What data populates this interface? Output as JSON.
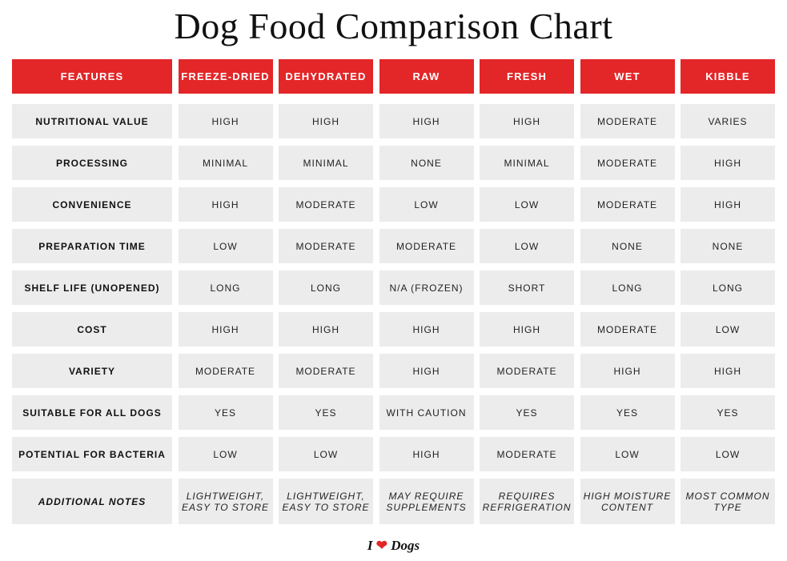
{
  "title": "Dog Food Comparison Chart",
  "accent_color": "#e32628",
  "headers": [
    "FEATURES",
    "FREEZE-DRIED",
    "DEHYDRATED",
    "RAW",
    "FRESH",
    "WET",
    "KIBBLE"
  ],
  "rows": [
    {
      "feature": "NUTRITIONAL VALUE",
      "values": [
        "HIGH",
        "HIGH",
        "HIGH",
        "HIGH",
        "MODERATE",
        "VARIES"
      ]
    },
    {
      "feature": "PROCESSING",
      "values": [
        "MINIMAL",
        "MINIMAL",
        "NONE",
        "MINIMAL",
        "MODERATE",
        "HIGH"
      ]
    },
    {
      "feature": "CONVENIENCE",
      "values": [
        "HIGH",
        "MODERATE",
        "LOW",
        "LOW",
        "MODERATE",
        "HIGH"
      ]
    },
    {
      "feature": "PREPARATION TIME",
      "values": [
        "LOW",
        "MODERATE",
        "MODERATE",
        "LOW",
        "NONE",
        "NONE"
      ]
    },
    {
      "feature": "SHELF LIFE (UNOPENED)",
      "values": [
        "LONG",
        "LONG",
        "N/A (FROZEN)",
        "SHORT",
        "LONG",
        "LONG"
      ]
    },
    {
      "feature": "COST",
      "values": [
        "HIGH",
        "HIGH",
        "HIGH",
        "HIGH",
        "MODERATE",
        "LOW"
      ]
    },
    {
      "feature": "VARIETY",
      "values": [
        "MODERATE",
        "MODERATE",
        "HIGH",
        "MODERATE",
        "HIGH",
        "HIGH"
      ]
    },
    {
      "feature": "SUITABLE FOR ALL DOGS",
      "values": [
        "YES",
        "YES",
        "WITH CAUTION",
        "YES",
        "YES",
        "YES"
      ]
    },
    {
      "feature": "POTENTIAL FOR BACTERIA",
      "values": [
        "LOW",
        "LOW",
        "HIGH",
        "MODERATE",
        "LOW",
        "LOW"
      ]
    },
    {
      "feature": "ADDITIONAL NOTES",
      "notes": true,
      "values": [
        "LIGHTWEIGHT,\nEASY TO STORE",
        "LIGHTWEIGHT,\nEASY TO STORE",
        "MAY REQUIRE\nSUPPLEMENTS",
        "REQUIRES\nREFRIGERATION",
        "HIGH MOISTURE\nCONTENT",
        "MOST COMMON\nTYPE"
      ]
    }
  ],
  "logo": {
    "before": "I",
    "heart_icon": "heart-icon",
    "after": "Dogs"
  }
}
